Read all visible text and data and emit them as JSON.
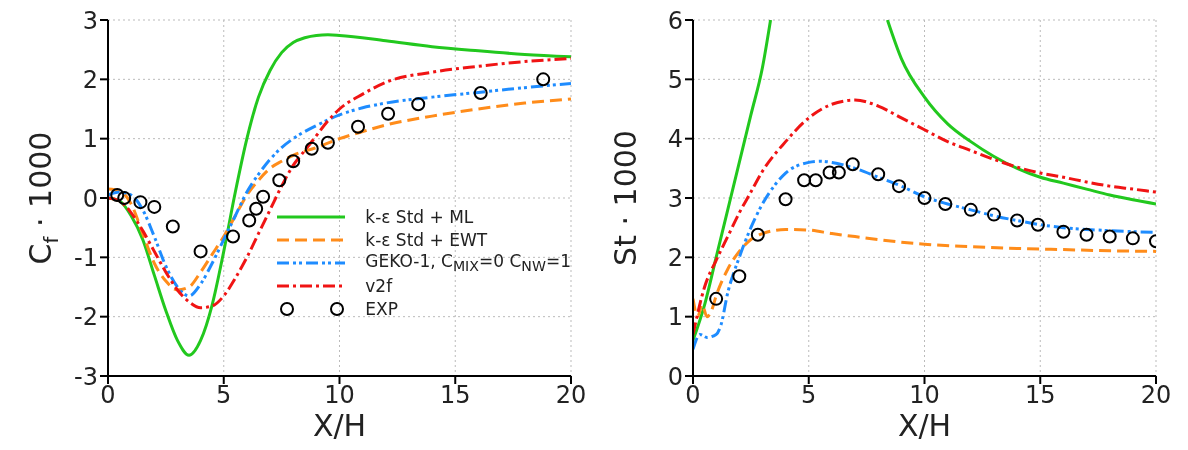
{
  "chart_data": [
    {
      "type": "line",
      "xlabel": "X/H",
      "ylabel": "C$_{f}$ · 1000",
      "xlim": [
        0,
        20
      ],
      "xticks": [
        0,
        5,
        10,
        15,
        20
      ],
      "ylim": [
        -3,
        3
      ],
      "yticks": [
        -3,
        -2,
        -1,
        0,
        1,
        2,
        3
      ],
      "grid": true,
      "legend": "bottom right",
      "marker": "none",
      "series": [
        {
          "name": "k-ε Std + ML",
          "color": "#22c81e",
          "line_style": "solid",
          "x": [
            0,
            0.5,
            1,
            1.5,
            2,
            2.5,
            3,
            3.5,
            4,
            4.5,
            5,
            5.5,
            6,
            6.5,
            7,
            7.5,
            8,
            8.5,
            9,
            9.5,
            10,
            12,
            14,
            16,
            18,
            20
          ],
          "values": [
            0,
            -0.05,
            -0.3,
            -0.7,
            -1.3,
            -1.9,
            -2.4,
            -2.65,
            -2.4,
            -1.8,
            -0.9,
            0.1,
            1.0,
            1.7,
            2.15,
            2.45,
            2.62,
            2.7,
            2.74,
            2.75,
            2.74,
            2.65,
            2.55,
            2.48,
            2.42,
            2.38
          ]
        },
        {
          "name": "k-ε Std + EWT",
          "color": "#ff8c1a",
          "line_style": "dashed",
          "x": [
            0,
            0.5,
            1,
            1.5,
            2,
            2.5,
            3,
            3.5,
            4,
            4.5,
            5,
            5.5,
            6,
            6.5,
            7,
            7.5,
            8,
            9,
            10,
            11,
            12,
            14,
            16,
            18,
            20
          ],
          "values": [
            0.15,
            0.12,
            -0.1,
            -0.6,
            -1.1,
            -1.4,
            -1.55,
            -1.5,
            -1.25,
            -0.95,
            -0.65,
            -0.3,
            0.05,
            0.3,
            0.5,
            0.62,
            0.72,
            0.85,
            1.0,
            1.12,
            1.23,
            1.38,
            1.5,
            1.6,
            1.67
          ]
        },
        {
          "name": "GEKO-1, C$_{MIX}$=0 C$_{NW}$=1",
          "color": "#1e8cff",
          "line_style": "dashdotdot",
          "x": [
            0,
            0.5,
            1,
            1.5,
            2,
            2.5,
            3,
            3.5,
            4,
            4.5,
            5,
            5.5,
            6,
            6.5,
            7,
            7.5,
            8,
            9,
            10,
            11,
            12,
            14,
            16,
            18,
            20
          ],
          "values": [
            0.05,
            0.1,
            0.05,
            -0.2,
            -0.65,
            -1.15,
            -1.5,
            -1.65,
            -1.45,
            -1.1,
            -0.7,
            -0.3,
            0.1,
            0.4,
            0.65,
            0.85,
            1.0,
            1.22,
            1.4,
            1.52,
            1.6,
            1.7,
            1.78,
            1.86,
            1.93
          ]
        },
        {
          "name": "v2f",
          "color": "#f01414",
          "line_style": "dashdot",
          "x": [
            0,
            0.5,
            1,
            1.5,
            2,
            2.5,
            3,
            3.5,
            4,
            4.5,
            5,
            5.5,
            6,
            6.5,
            7,
            7.5,
            8,
            8.5,
            9,
            9.5,
            10,
            11,
            12,
            14,
            16,
            18,
            20
          ],
          "values": [
            0,
            -0.05,
            -0.25,
            -0.55,
            -0.9,
            -1.25,
            -1.55,
            -1.75,
            -1.85,
            -1.82,
            -1.65,
            -1.35,
            -1.0,
            -0.6,
            -0.2,
            0.2,
            0.55,
            0.8,
            1.05,
            1.3,
            1.5,
            1.75,
            1.95,
            2.12,
            2.22,
            2.3,
            2.35
          ]
        },
        {
          "name": "EXP",
          "type": "scatter",
          "marker": "circle",
          "color": "#000000",
          "x": [
            0.4,
            0.7,
            1.4,
            2.0,
            2.8,
            4.0,
            5.4,
            6.1,
            6.4,
            6.7,
            7.4,
            8.0,
            8.8,
            9.5,
            10.8,
            12.1,
            13.4,
            16.1,
            18.8
          ],
          "values": [
            0.05,
            0.0,
            -0.07,
            -0.15,
            -0.48,
            -0.9,
            -0.65,
            -0.38,
            -0.18,
            0.02,
            0.3,
            0.62,
            0.83,
            0.93,
            1.2,
            1.42,
            1.58,
            1.77,
            2.0
          ]
        }
      ]
    },
    {
      "type": "line",
      "xlabel": "X/H",
      "ylabel": "St · 1000",
      "xlim": [
        0,
        20
      ],
      "xticks": [
        0,
        5,
        10,
        15,
        20
      ],
      "ylim": [
        0,
        6
      ],
      "yticks": [
        0,
        1,
        2,
        3,
        4,
        5,
        6
      ],
      "grid": true,
      "marker": "none",
      "series": [
        {
          "color": "#22c81e",
          "line_style": "solid",
          "x": [
            0,
            0.5,
            1,
            1.5,
            2,
            2.5,
            3,
            3.35,
            6,
            8.4,
            9,
            10,
            11,
            12,
            13,
            14,
            15,
            16,
            17,
            18,
            19,
            20
          ],
          "values": [
            0.6,
            1.2,
            2.0,
            2.8,
            3.6,
            4.4,
            5.2,
            6,
            null,
            6,
            5.35,
            4.7,
            4.25,
            3.95,
            3.7,
            3.5,
            3.35,
            3.25,
            3.15,
            3.05,
            2.97,
            2.9
          ]
        },
        {
          "color": "#ff8c1a",
          "line_style": "dashed",
          "x": [
            0,
            0.2,
            0.4,
            0.6,
            0.8,
            1,
            1.5,
            2,
            2.5,
            3,
            4,
            5,
            6,
            7,
            8,
            10,
            12,
            14,
            16,
            18,
            20
          ],
          "values": [
            1.3,
            1.0,
            1.2,
            1.0,
            1.1,
            1.35,
            1.8,
            2.1,
            2.3,
            2.4,
            2.47,
            2.46,
            2.4,
            2.35,
            2.3,
            2.22,
            2.18,
            2.15,
            2.13,
            2.11,
            2.1
          ]
        },
        {
          "color": "#1e8cff",
          "line_style": "dashdotdot",
          "x": [
            0,
            0.3,
            0.6,
            1,
            1.2,
            1.5,
            2,
            2.5,
            3,
            3.5,
            4,
            5,
            5.5,
            6,
            7,
            8,
            9,
            10,
            11,
            12,
            13,
            14,
            15,
            16,
            18,
            20
          ],
          "values": [
            0.45,
            0.7,
            0.65,
            0.7,
            0.85,
            1.4,
            2.0,
            2.5,
            2.9,
            3.2,
            3.42,
            3.6,
            3.62,
            3.6,
            3.5,
            3.35,
            3.2,
            3.02,
            2.9,
            2.8,
            2.7,
            2.62,
            2.55,
            2.5,
            2.45,
            2.42
          ]
        },
        {
          "color": "#f01414",
          "line_style": "dashdot",
          "x": [
            0,
            0.5,
            1,
            1.5,
            2,
            2.5,
            3,
            4,
            5,
            6,
            7,
            8,
            9,
            10,
            11,
            12,
            13,
            14,
            15,
            16,
            17,
            18,
            19,
            20
          ],
          "values": [
            0.7,
            1.5,
            1.95,
            2.35,
            2.75,
            3.1,
            3.45,
            3.95,
            4.35,
            4.58,
            4.65,
            4.55,
            4.35,
            4.15,
            3.95,
            3.8,
            3.65,
            3.52,
            3.42,
            3.35,
            3.27,
            3.2,
            3.15,
            3.1
          ]
        },
        {
          "type": "scatter",
          "marker": "circle",
          "color": "#000000",
          "x": [
            1.0,
            2.0,
            2.8,
            4.0,
            4.8,
            5.3,
            5.9,
            6.3,
            6.9,
            8,
            8.9,
            10,
            10.9,
            12,
            13,
            14,
            14.9,
            16,
            17,
            18,
            19,
            20
          ],
          "values": [
            1.3,
            1.68,
            2.38,
            2.98,
            3.3,
            3.3,
            3.43,
            3.43,
            3.57,
            3.4,
            3.2,
            3.0,
            2.9,
            2.8,
            2.72,
            2.62,
            2.55,
            2.43,
            2.38,
            2.35,
            2.32,
            2.27
          ]
        }
      ]
    }
  ]
}
